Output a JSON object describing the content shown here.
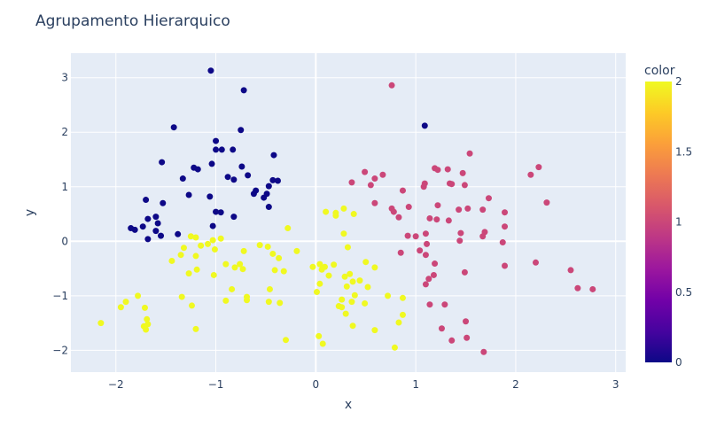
{
  "chart_data": {
    "type": "scatter",
    "title": "Agrupamento Hierarquico",
    "xlabel": "x",
    "ylabel": "y",
    "xlim": [
      -2.45,
      3.1
    ],
    "ylim": [
      -2.4,
      3.45
    ],
    "x_ticks": [
      -2,
      -1,
      0,
      1,
      2,
      3
    ],
    "y_ticks": [
      -2,
      -1,
      0,
      1,
      2,
      3
    ],
    "tick_labels_x": [
      "−2",
      "−1",
      "0",
      "1",
      "2",
      "3"
    ],
    "tick_labels_y": [
      "−2",
      "−1",
      "0",
      "1",
      "2",
      "3"
    ],
    "grid": true,
    "colorbar": {
      "title": "color",
      "range": [
        0,
        2
      ],
      "ticks": [
        0,
        0.5,
        1,
        1.5,
        2
      ],
      "tick_labels": [
        "0",
        "0.5",
        "1",
        "1.5",
        "2"
      ],
      "colorscale": [
        "#0d0887",
        "#46039f",
        "#7201a8",
        "#9c179e",
        "#bd3786",
        "#d8576b",
        "#ed7953",
        "#fb9f3a",
        "#fdca26",
        "#f0f921"
      ]
    },
    "points": [
      {
        "x": -1.05,
        "y": 3.13,
        "c": 0
      },
      {
        "x": -0.72,
        "y": 2.77,
        "c": 0
      },
      {
        "x": -1.42,
        "y": 2.09,
        "c": 0
      },
      {
        "x": -0.75,
        "y": 2.04,
        "c": 0
      },
      {
        "x": -1.0,
        "y": 1.84,
        "c": 0
      },
      {
        "x": -1.0,
        "y": 1.68,
        "c": 0
      },
      {
        "x": -0.94,
        "y": 1.68,
        "c": 0
      },
      {
        "x": -0.83,
        "y": 1.68,
        "c": 0
      },
      {
        "x": -0.42,
        "y": 1.58,
        "c": 0
      },
      {
        "x": -1.54,
        "y": 1.45,
        "c": 0
      },
      {
        "x": -1.04,
        "y": 1.42,
        "c": 0
      },
      {
        "x": -1.22,
        "y": 1.35,
        "c": 0
      },
      {
        "x": -0.74,
        "y": 1.37,
        "c": 0
      },
      {
        "x": -1.18,
        "y": 1.32,
        "c": 0
      },
      {
        "x": -0.68,
        "y": 1.21,
        "c": 0
      },
      {
        "x": -0.88,
        "y": 1.18,
        "c": 0
      },
      {
        "x": -1.33,
        "y": 1.15,
        "c": 0
      },
      {
        "x": -0.82,
        "y": 1.13,
        "c": 0
      },
      {
        "x": -0.43,
        "y": 1.12,
        "c": 0
      },
      {
        "x": -0.38,
        "y": 1.11,
        "c": 0
      },
      {
        "x": -0.47,
        "y": 1.01,
        "c": 0
      },
      {
        "x": -0.6,
        "y": 0.93,
        "c": 0
      },
      {
        "x": -0.62,
        "y": 0.87,
        "c": 0
      },
      {
        "x": -0.49,
        "y": 0.87,
        "c": 0
      },
      {
        "x": -1.27,
        "y": 0.85,
        "c": 0
      },
      {
        "x": -0.52,
        "y": 0.8,
        "c": 0
      },
      {
        "x": -1.06,
        "y": 0.82,
        "c": 0
      },
      {
        "x": -1.7,
        "y": 0.76,
        "c": 0
      },
      {
        "x": -1.53,
        "y": 0.7,
        "c": 0
      },
      {
        "x": -0.47,
        "y": 0.63,
        "c": 0
      },
      {
        "x": -1.0,
        "y": 0.54,
        "c": 0
      },
      {
        "x": -0.95,
        "y": 0.53,
        "c": 0
      },
      {
        "x": -0.82,
        "y": 0.45,
        "c": 0
      },
      {
        "x": -1.6,
        "y": 0.45,
        "c": 0
      },
      {
        "x": -1.68,
        "y": 0.41,
        "c": 0
      },
      {
        "x": -1.58,
        "y": 0.33,
        "c": 0
      },
      {
        "x": -1.03,
        "y": 0.28,
        "c": 0
      },
      {
        "x": -1.73,
        "y": 0.27,
        "c": 0
      },
      {
        "x": -1.85,
        "y": 0.24,
        "c": 0
      },
      {
        "x": -1.81,
        "y": 0.21,
        "c": 0
      },
      {
        "x": -1.6,
        "y": 0.19,
        "c": 0
      },
      {
        "x": -1.38,
        "y": 0.13,
        "c": 0
      },
      {
        "x": -1.55,
        "y": 0.1,
        "c": 0
      },
      {
        "x": -1.68,
        "y": 0.04,
        "c": 0
      },
      {
        "x": 0.76,
        "y": 2.86,
        "c": 1
      },
      {
        "x": 1.09,
        "y": 2.12,
        "c": 0
      },
      {
        "x": 1.54,
        "y": 1.61,
        "c": 1
      },
      {
        "x": 2.23,
        "y": 1.36,
        "c": 1
      },
      {
        "x": 1.19,
        "y": 1.34,
        "c": 1
      },
      {
        "x": 1.22,
        "y": 1.31,
        "c": 1
      },
      {
        "x": 1.32,
        "y": 1.32,
        "c": 1
      },
      {
        "x": 1.47,
        "y": 1.25,
        "c": 1
      },
      {
        "x": 0.49,
        "y": 1.27,
        "c": 1
      },
      {
        "x": 0.67,
        "y": 1.22,
        "c": 1
      },
      {
        "x": 2.15,
        "y": 1.22,
        "c": 1
      },
      {
        "x": 0.59,
        "y": 1.15,
        "c": 1
      },
      {
        "x": 0.36,
        "y": 1.08,
        "c": 1
      },
      {
        "x": 1.09,
        "y": 1.06,
        "c": 1
      },
      {
        "x": 1.34,
        "y": 1.06,
        "c": 1
      },
      {
        "x": 1.36,
        "y": 1.05,
        "c": 1
      },
      {
        "x": 0.55,
        "y": 1.03,
        "c": 1
      },
      {
        "x": 1.49,
        "y": 1.03,
        "c": 1
      },
      {
        "x": 1.08,
        "y": 1.0,
        "c": 1
      },
      {
        "x": 0.87,
        "y": 0.93,
        "c": 1
      },
      {
        "x": 1.73,
        "y": 0.79,
        "c": 1
      },
      {
        "x": 2.31,
        "y": 0.71,
        "c": 1
      },
      {
        "x": 0.59,
        "y": 0.7,
        "c": 1
      },
      {
        "x": 1.22,
        "y": 0.66,
        "c": 1
      },
      {
        "x": 0.93,
        "y": 0.63,
        "c": 1
      },
      {
        "x": 0.76,
        "y": 0.6,
        "c": 1
      },
      {
        "x": 1.52,
        "y": 0.6,
        "c": 1
      },
      {
        "x": 1.43,
        "y": 0.58,
        "c": 1
      },
      {
        "x": 1.67,
        "y": 0.58,
        "c": 1
      },
      {
        "x": 0.78,
        "y": 0.54,
        "c": 1
      },
      {
        "x": 1.89,
        "y": 0.53,
        "c": 1
      },
      {
        "x": 0.83,
        "y": 0.44,
        "c": 1
      },
      {
        "x": 1.14,
        "y": 0.42,
        "c": 1
      },
      {
        "x": 1.33,
        "y": 0.38,
        "c": 1
      },
      {
        "x": 1.21,
        "y": 0.4,
        "c": 1
      },
      {
        "x": 1.89,
        "y": 0.27,
        "c": 1
      },
      {
        "x": 1.69,
        "y": 0.17,
        "c": 1
      },
      {
        "x": 1.45,
        "y": 0.15,
        "c": 1
      },
      {
        "x": 1.1,
        "y": 0.14,
        "c": 1
      },
      {
        "x": 1.67,
        "y": 0.09,
        "c": 1
      },
      {
        "x": 0.92,
        "y": 0.1,
        "c": 1
      },
      {
        "x": 1.0,
        "y": 0.09,
        "c": 1
      },
      {
        "x": 1.44,
        "y": 0.01,
        "c": 1
      },
      {
        "x": 1.87,
        "y": -0.02,
        "c": 1
      },
      {
        "x": 1.11,
        "y": -0.05,
        "c": 1
      },
      {
        "x": 1.04,
        "y": -0.17,
        "c": 1
      },
      {
        "x": 0.85,
        "y": -0.21,
        "c": 1
      },
      {
        "x": 1.1,
        "y": -0.25,
        "c": 1
      },
      {
        "x": 2.2,
        "y": -0.39,
        "c": 1
      },
      {
        "x": 1.19,
        "y": -0.41,
        "c": 1
      },
      {
        "x": 1.89,
        "y": -0.45,
        "c": 1
      },
      {
        "x": 2.55,
        "y": -0.53,
        "c": 1
      },
      {
        "x": 1.49,
        "y": -0.57,
        "c": 1
      },
      {
        "x": 1.18,
        "y": -0.62,
        "c": 1
      },
      {
        "x": 1.13,
        "y": -0.69,
        "c": 1
      },
      {
        "x": 1.1,
        "y": -0.79,
        "c": 1
      },
      {
        "x": 2.62,
        "y": -0.86,
        "c": 1
      },
      {
        "x": 2.77,
        "y": -0.88,
        "c": 1
      },
      {
        "x": 1.14,
        "y": -1.16,
        "c": 1
      },
      {
        "x": 1.29,
        "y": -1.16,
        "c": 1
      },
      {
        "x": 1.5,
        "y": -1.47,
        "c": 1
      },
      {
        "x": 1.26,
        "y": -1.6,
        "c": 1
      },
      {
        "x": 1.51,
        "y": -1.77,
        "c": 1
      },
      {
        "x": 1.36,
        "y": -1.82,
        "c": 1
      },
      {
        "x": 1.68,
        "y": -2.03,
        "c": 1
      },
      {
        "x": -0.28,
        "y": 0.24,
        "c": 2
      },
      {
        "x": -0.95,
        "y": 0.05,
        "c": 2
      },
      {
        "x": -1.25,
        "y": 0.09,
        "c": 2
      },
      {
        "x": -1.2,
        "y": 0.07,
        "c": 2
      },
      {
        "x": -1.03,
        "y": 0.02,
        "c": 2
      },
      {
        "x": -1.08,
        "y": -0.05,
        "c": 2
      },
      {
        "x": -1.15,
        "y": -0.08,
        "c": 2
      },
      {
        "x": -1.32,
        "y": -0.12,
        "c": 2
      },
      {
        "x": -1.01,
        "y": -0.15,
        "c": 2
      },
      {
        "x": -0.72,
        "y": -0.18,
        "c": 2
      },
      {
        "x": -0.19,
        "y": -0.18,
        "c": 2
      },
      {
        "x": -0.43,
        "y": -0.23,
        "c": 2
      },
      {
        "x": -1.35,
        "y": -0.25,
        "c": 2
      },
      {
        "x": -1.2,
        "y": -0.27,
        "c": 2
      },
      {
        "x": -0.48,
        "y": -0.1,
        "c": 2
      },
      {
        "x": -0.37,
        "y": -0.31,
        "c": 2
      },
      {
        "x": -1.44,
        "y": -0.36,
        "c": 2
      },
      {
        "x": -0.9,
        "y": -0.42,
        "c": 2
      },
      {
        "x": -0.76,
        "y": -0.42,
        "c": 2
      },
      {
        "x": -0.73,
        "y": -0.51,
        "c": 2
      },
      {
        "x": -0.81,
        "y": -0.48,
        "c": 2
      },
      {
        "x": -1.19,
        "y": -0.52,
        "c": 2
      },
      {
        "x": -0.41,
        "y": -0.53,
        "c": 2
      },
      {
        "x": -0.32,
        "y": -0.55,
        "c": 2
      },
      {
        "x": -1.27,
        "y": -0.59,
        "c": 2
      },
      {
        "x": -1.02,
        "y": -0.62,
        "c": 2
      },
      {
        "x": -0.46,
        "y": -0.88,
        "c": 2
      },
      {
        "x": -0.84,
        "y": -0.88,
        "c": 2
      },
      {
        "x": -1.34,
        "y": -1.02,
        "c": 2
      },
      {
        "x": -0.69,
        "y": -1.02,
        "c": 2
      },
      {
        "x": -0.69,
        "y": -1.08,
        "c": 2
      },
      {
        "x": -0.9,
        "y": -1.09,
        "c": 2
      },
      {
        "x": -0.47,
        "y": -1.11,
        "c": 2
      },
      {
        "x": -0.36,
        "y": -1.13,
        "c": 2
      },
      {
        "x": -1.24,
        "y": -1.18,
        "c": 2
      },
      {
        "x": -1.71,
        "y": -1.22,
        "c": 2
      },
      {
        "x": -1.95,
        "y": -1.21,
        "c": 2
      },
      {
        "x": -1.78,
        "y": -1.0,
        "c": 2
      },
      {
        "x": -1.9,
        "y": -1.11,
        "c": 2
      },
      {
        "x": -1.69,
        "y": -1.43,
        "c": 2
      },
      {
        "x": -1.68,
        "y": -1.52,
        "c": 2
      },
      {
        "x": -1.72,
        "y": -1.56,
        "c": 2
      },
      {
        "x": -1.7,
        "y": -1.62,
        "c": 2
      },
      {
        "x": -1.2,
        "y": -1.61,
        "c": 2
      },
      {
        "x": -2.15,
        "y": -1.5,
        "c": 2
      },
      {
        "x": -0.3,
        "y": -1.81,
        "c": 2
      },
      {
        "x": -0.56,
        "y": -0.07,
        "c": 2
      },
      {
        "x": 0.1,
        "y": 0.54,
        "c": 2
      },
      {
        "x": 0.2,
        "y": 0.52,
        "c": 2
      },
      {
        "x": 0.2,
        "y": 0.47,
        "c": 2
      },
      {
        "x": 0.28,
        "y": 0.6,
        "c": 2
      },
      {
        "x": 0.38,
        "y": 0.5,
        "c": 2
      },
      {
        "x": 0.28,
        "y": 0.14,
        "c": 2
      },
      {
        "x": 0.32,
        "y": -0.11,
        "c": 2
      },
      {
        "x": -0.03,
        "y": -0.47,
        "c": 2
      },
      {
        "x": 0.04,
        "y": -0.42,
        "c": 2
      },
      {
        "x": 0.09,
        "y": -0.47,
        "c": 2
      },
      {
        "x": 0.18,
        "y": -0.43,
        "c": 2
      },
      {
        "x": 0.06,
        "y": -0.52,
        "c": 2
      },
      {
        "x": 0.13,
        "y": -0.63,
        "c": 2
      },
      {
        "x": 0.29,
        "y": -0.65,
        "c": 2
      },
      {
        "x": 0.34,
        "y": -0.6,
        "c": 2
      },
      {
        "x": 0.44,
        "y": -0.72,
        "c": 2
      },
      {
        "x": 0.37,
        "y": -0.74,
        "c": 2
      },
      {
        "x": 0.31,
        "y": -0.83,
        "c": 2
      },
      {
        "x": 0.52,
        "y": -0.84,
        "c": 2
      },
      {
        "x": 0.04,
        "y": -0.78,
        "c": 2
      },
      {
        "x": 0.5,
        "y": -0.38,
        "c": 2
      },
      {
        "x": 0.59,
        "y": -0.48,
        "c": 2
      },
      {
        "x": 0.01,
        "y": -0.93,
        "c": 2
      },
      {
        "x": 0.39,
        "y": -0.99,
        "c": 2
      },
      {
        "x": 0.72,
        "y": -1.0,
        "c": 2
      },
      {
        "x": 0.87,
        "y": -1.04,
        "c": 2
      },
      {
        "x": 0.26,
        "y": -1.07,
        "c": 2
      },
      {
        "x": 0.36,
        "y": -1.11,
        "c": 2
      },
      {
        "x": 0.49,
        "y": -1.14,
        "c": 2
      },
      {
        "x": 0.23,
        "y": -1.19,
        "c": 2
      },
      {
        "x": 0.26,
        "y": -1.21,
        "c": 2
      },
      {
        "x": 0.3,
        "y": -1.33,
        "c": 2
      },
      {
        "x": 0.87,
        "y": -1.35,
        "c": 2
      },
      {
        "x": 0.83,
        "y": -1.49,
        "c": 2
      },
      {
        "x": 0.37,
        "y": -1.55,
        "c": 2
      },
      {
        "x": 0.59,
        "y": -1.63,
        "c": 2
      },
      {
        "x": 0.03,
        "y": -1.74,
        "c": 2
      },
      {
        "x": 0.07,
        "y": -1.88,
        "c": 2
      },
      {
        "x": 0.79,
        "y": -1.95,
        "c": 2
      }
    ]
  }
}
